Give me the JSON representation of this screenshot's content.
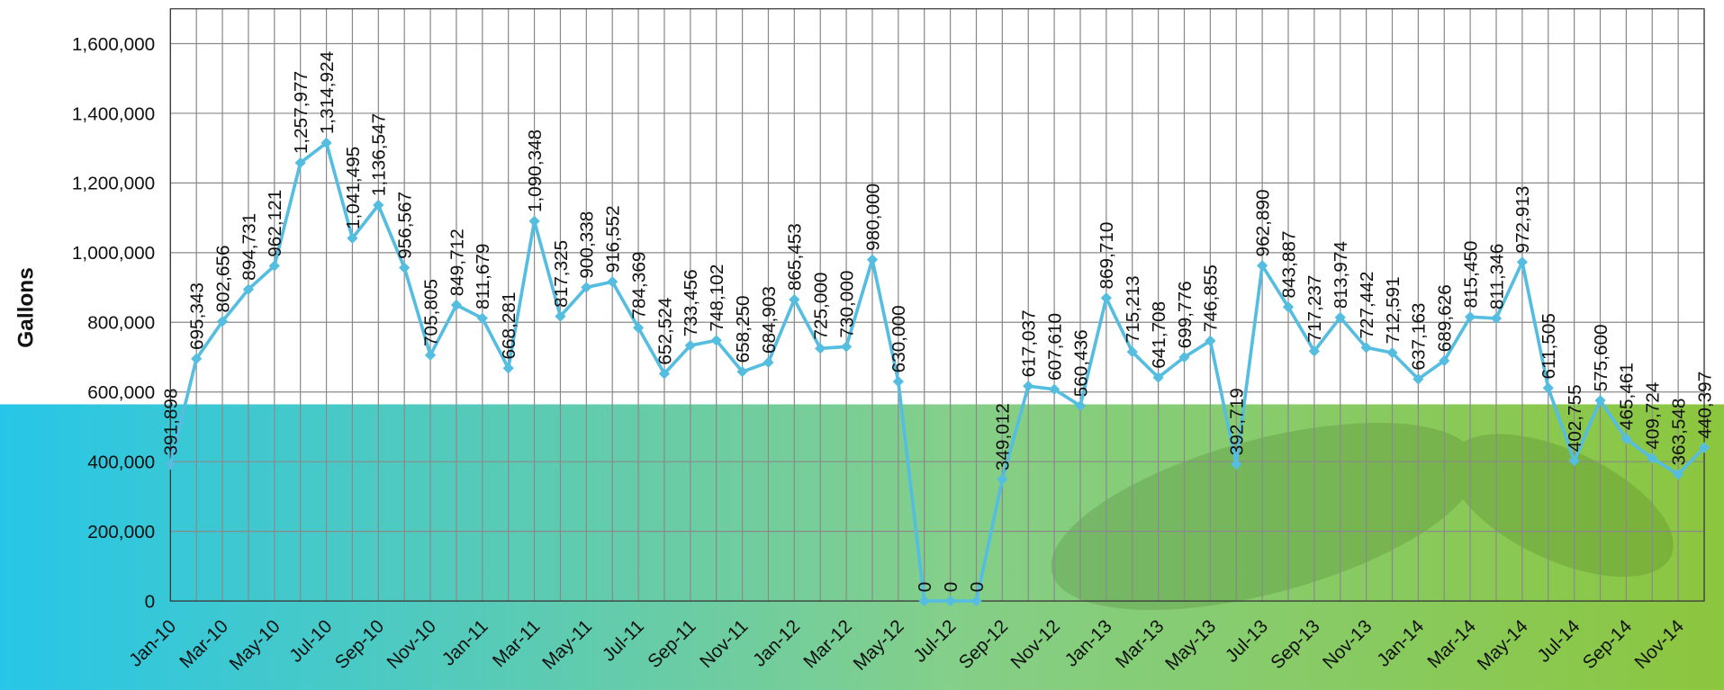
{
  "chart_data": {
    "type": "line",
    "y_label": "Gallons",
    "categories": [
      "Jan-10",
      null,
      "Mar-10",
      null,
      "May-10",
      null,
      "Jul-10",
      null,
      "Sep-10",
      null,
      "Nov-10",
      null,
      "Jan-11",
      null,
      "Mar-11",
      null,
      "May-11",
      null,
      "Jul-11",
      null,
      "Sep-11",
      null,
      "Nov-11",
      null,
      "Jan-12",
      null,
      "Mar-12",
      null,
      "May-12",
      null,
      "Jul-12",
      null,
      "Sep-12",
      null,
      "Nov-12",
      null,
      "Jan-13",
      null,
      "Mar-13",
      null,
      "May-13",
      null,
      "Jul-13",
      null,
      "Sep-13",
      null,
      "Nov-13",
      null,
      "Jan-14",
      null,
      "Mar-14",
      null,
      "May-14",
      null,
      "Jul-14",
      null,
      "Sep-14",
      null,
      "Nov-14",
      null
    ],
    "values": [
      391898,
      695343,
      802656,
      894731,
      962121,
      1257977,
      1314924,
      1041495,
      1136547,
      956567,
      705805,
      849712,
      811679,
      668281,
      1090348,
      817325,
      900338,
      916552,
      784369,
      652524,
      733456,
      748102,
      658250,
      684903,
      865453,
      725000,
      730000,
      980000,
      630000,
      0,
      0,
      0,
      349012,
      617037,
      607610,
      560436,
      869710,
      715213,
      641708,
      699776,
      746855,
      392719,
      962890,
      843887,
      717237,
      813974,
      727442,
      712591,
      637163,
      689626,
      815450,
      811346,
      972913,
      611505,
      402755,
      575600,
      465461,
      409724,
      363548,
      440397
    ],
    "value_labels": [
      "391,898",
      "695,343",
      "802,656",
      "894,731",
      "962,121",
      "1,257,977",
      "1,314,924",
      "1,041,495",
      "1,136,547",
      "956,567",
      "705,805",
      "849,712",
      "811,679",
      "668,281",
      "1,090,348",
      "817,325",
      "900,338",
      "916,552",
      "784,369",
      "652,524",
      "733,456",
      "748,102",
      "658,250",
      "684,903",
      "865,453",
      "725,000",
      "730,000",
      "980,000",
      "630,000",
      "0",
      "0",
      "0",
      "349,012",
      "617,037",
      "607,610",
      "560,436",
      "869,710",
      "715,213",
      "641,708",
      "699,776",
      "746,855",
      "392,719",
      "962,890",
      "843,887",
      "717,237",
      "813,974",
      "727,442",
      "712,591",
      "637,163",
      "689,626",
      "815,450",
      "811,346",
      "972,913",
      "611,505",
      "402,755",
      "575,600",
      "465,461",
      "409,724",
      "363,548",
      "440,397"
    ],
    "color": "#55bde0",
    "ylim": [
      0,
      1700000
    ],
    "yticks": [
      0,
      {
        "value": 200000,
        "label": "200,000"
      },
      {
        "value": 400000,
        "label": "400,000"
      },
      {
        "value": 600000,
        "label": "600,000"
      },
      {
        "value": 800000,
        "label": "800,000"
      },
      {
        "value": 1000000,
        "label": "1,000,000"
      },
      {
        "value": 1200000,
        "label": "1,200,000"
      },
      {
        "value": 1400000,
        "label": "1,400,000"
      },
      {
        "value": 1600000,
        "label": "1,600,000"
      }
    ],
    "grid": true
  }
}
